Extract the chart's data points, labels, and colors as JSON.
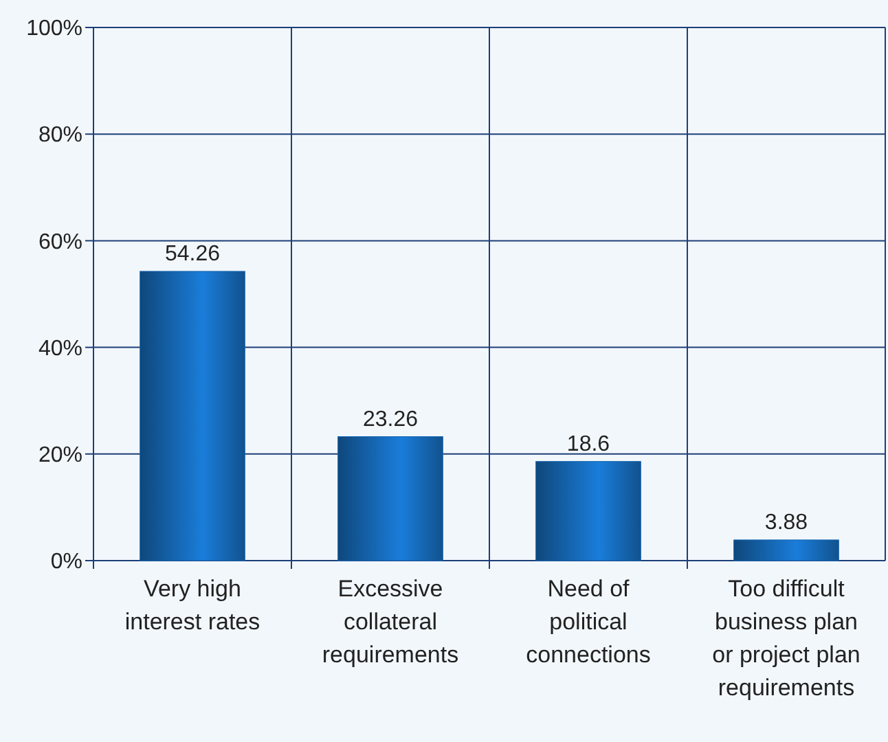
{
  "chart_data": {
    "type": "bar",
    "categories": [
      "Very high interest rates",
      "Excessive collateral requirements",
      "Need of political connections",
      "Too difficult business plan or project plan requirements"
    ],
    "values": [
      54.26,
      23.26,
      18.6,
      3.88
    ],
    "color": "#1565b0",
    "ylim": [
      0,
      100
    ],
    "yticks": [
      {
        "value": 0,
        "label": "0%"
      },
      {
        "value": 20,
        "label": "20%"
      },
      {
        "value": 40,
        "label": "40%"
      },
      {
        "value": 60,
        "label": "60%"
      },
      {
        "value": 80,
        "label": "80%"
      },
      {
        "value": 100,
        "label": "100%"
      }
    ],
    "grid": true,
    "data_labels": true
  }
}
